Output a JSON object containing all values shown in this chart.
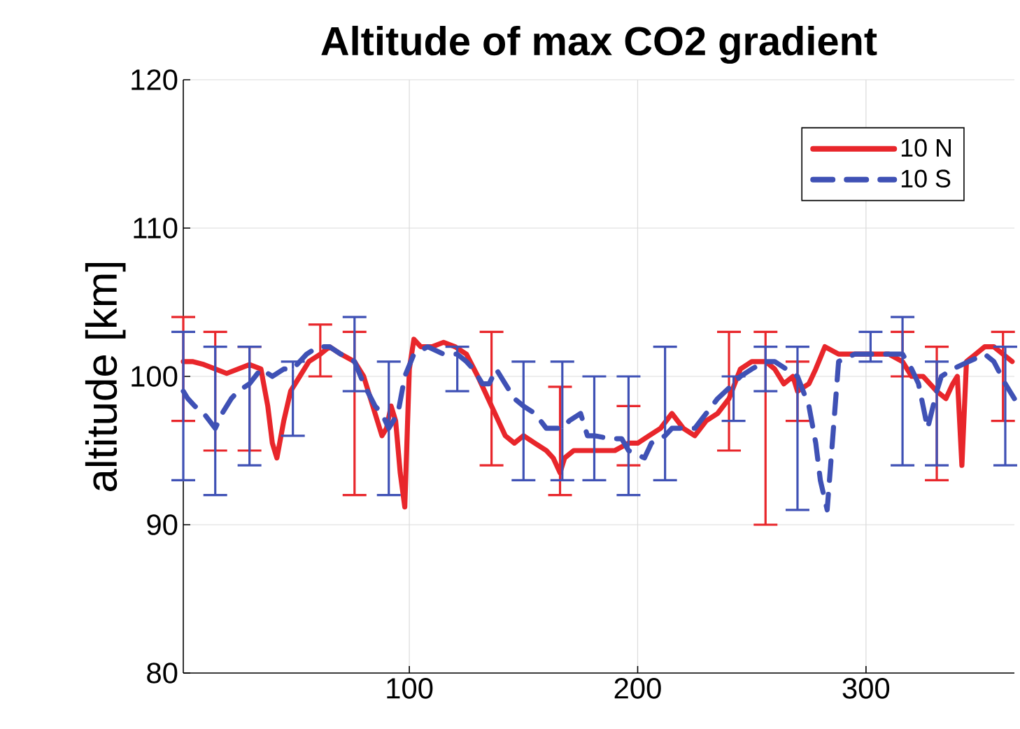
{
  "chart_data": {
    "type": "line",
    "title": "Altitude of max CO2 gradient",
    "ylabel": "altitude [km]",
    "xlim": [
      1,
      365
    ],
    "ylim": [
      80,
      120
    ],
    "xticks": [
      100,
      200,
      300
    ],
    "yticks": [
      80,
      90,
      100,
      110,
      120
    ],
    "grid": true,
    "legend": "top right",
    "series": [
      {
        "name": "10 N",
        "color": "#e8262b",
        "line_style": "solid",
        "x": [
          1,
          5,
          10,
          15,
          20,
          25,
          30,
          35,
          38,
          40,
          42,
          45,
          48,
          52,
          56,
          61,
          65,
          70,
          76,
          80,
          85,
          88,
          90,
          92,
          94,
          96,
          98,
          100,
          102,
          105,
          110,
          115,
          120,
          125,
          130,
          136,
          142,
          146,
          150,
          155,
          160,
          163,
          166,
          168,
          172,
          178,
          185,
          190,
          196,
          200,
          205,
          210,
          215,
          220,
          225,
          230,
          235,
          240,
          245,
          250,
          256,
          260,
          264,
          268,
          270,
          275,
          278,
          282,
          288,
          295,
          300,
          305,
          310,
          316,
          320,
          325,
          331,
          335,
          338,
          340,
          342,
          344,
          348,
          352,
          356,
          360,
          364
        ],
        "values": [
          101,
          101,
          100.8,
          100.5,
          100.2,
          100.5,
          100.8,
          100.5,
          98,
          95.5,
          94.5,
          97,
          99,
          100,
          101,
          101.5,
          102,
          101.5,
          101,
          100,
          97.5,
          96,
          96.5,
          98,
          97,
          93.5,
          91.2,
          100.5,
          102.5,
          102,
          102,
          102.3,
          102,
          101.5,
          100,
          98,
          96,
          95.5,
          96,
          95.5,
          95,
          94.5,
          93.5,
          94.5,
          95,
          95,
          95,
          95,
          95.5,
          95.5,
          96,
          96.5,
          97.5,
          96.5,
          96,
          97,
          97.5,
          98.5,
          100.5,
          101,
          101,
          100.5,
          99.5,
          100,
          99,
          99.5,
          100.5,
          102,
          101.5,
          101.5,
          101.5,
          101.5,
          101.5,
          101,
          100,
          100,
          99,
          98.5,
          99.5,
          100,
          94,
          101,
          101.5,
          102,
          102,
          101.5,
          101
        ],
        "errors": [
          [
            97,
            104
          ],
          null,
          null,
          [
            95,
            103
          ],
          null,
          null,
          [
            95,
            102
          ],
          null,
          null,
          null,
          null,
          null,
          null,
          null,
          null,
          [
            100,
            103.5
          ],
          null,
          null,
          [
            92,
            103
          ],
          null,
          null,
          null,
          null,
          null,
          null,
          null,
          null,
          null,
          null,
          null,
          null,
          null,
          null,
          null,
          null,
          [
            94,
            103
          ],
          null,
          null,
          null,
          null,
          null,
          null,
          [
            92,
            99.3
          ],
          null,
          null,
          null,
          null,
          null,
          [
            94,
            98
          ],
          null,
          null,
          null,
          null,
          null,
          null,
          null,
          null,
          [
            95,
            103
          ],
          null,
          null,
          [
            90,
            103
          ],
          null,
          null,
          null,
          [
            97,
            101
          ],
          null,
          null,
          null,
          null,
          null,
          null,
          null,
          null,
          [
            100,
            103
          ],
          null,
          null,
          [
            93,
            102
          ],
          null,
          null,
          null,
          null,
          null,
          null,
          null,
          null,
          [
            97,
            103
          ],
          null
        ]
      },
      {
        "name": "10 S",
        "color": "#3f51b5",
        "line_style": "dashed",
        "x": [
          1,
          3,
          6,
          10,
          15,
          18,
          22,
          25,
          30,
          35,
          40,
          45,
          49,
          55,
          60,
          65,
          70,
          76,
          80,
          85,
          88,
          91,
          95,
          98,
          102,
          108,
          115,
          121,
          125,
          128,
          132,
          135,
          138,
          142,
          146,
          150,
          155,
          160,
          167,
          170,
          175,
          178,
          181,
          188,
          193,
          196,
          203,
          206,
          212,
          215,
          220,
          225,
          230,
          235,
          242,
          245,
          250,
          256,
          260,
          265,
          270,
          275,
          278,
          280,
          283,
          288,
          295,
          302,
          308,
          316,
          320,
          323,
          325,
          327,
          331,
          333,
          338,
          345,
          352,
          356,
          361,
          365
        ],
        "values": [
          99,
          98.5,
          98,
          97.5,
          96.5,
          97.5,
          98.5,
          99,
          99.5,
          100.5,
          100,
          100.5,
          100.5,
          101.5,
          102,
          102,
          101.5,
          101,
          99.5,
          98,
          97.5,
          96.5,
          97.5,
          100,
          101.5,
          102,
          101.5,
          101.5,
          101,
          100.5,
          99.5,
          99.5,
          100.5,
          99.5,
          98.5,
          98,
          97.5,
          96.5,
          96.5,
          97,
          97.5,
          96,
          96,
          95.8,
          95.8,
          95,
          94.5,
          95.5,
          96,
          96.5,
          96.5,
          96.5,
          97.5,
          98.5,
          99.5,
          100,
          100.5,
          101,
          101,
          100.5,
          100,
          98,
          95.5,
          93,
          91,
          101,
          101.5,
          101.5,
          101.5,
          101.5,
          100.5,
          99.5,
          98,
          96.5,
          99,
          100,
          100.5,
          101,
          101.5,
          101,
          99.5,
          98.5
        ],
        "errors": [
          [
            93,
            103
          ],
          null,
          null,
          null,
          [
            92,
            102
          ],
          null,
          null,
          null,
          [
            94,
            102
          ],
          null,
          null,
          null,
          [
            96,
            101
          ],
          null,
          null,
          null,
          null,
          [
            99,
            104
          ],
          null,
          null,
          null,
          [
            92,
            101
          ],
          null,
          null,
          null,
          null,
          null,
          [
            99,
            102
          ],
          null,
          null,
          null,
          null,
          null,
          null,
          null,
          [
            93,
            101
          ],
          null,
          null,
          [
            93,
            101
          ],
          null,
          null,
          null,
          [
            93,
            100
          ],
          null,
          null,
          [
            92,
            100
          ],
          null,
          null,
          [
            93,
            102
          ],
          null,
          null,
          null,
          null,
          null,
          [
            97,
            100
          ],
          null,
          null,
          [
            99,
            102
          ],
          null,
          null,
          [
            91,
            102
          ],
          null,
          null,
          null,
          null,
          null,
          null,
          [
            101,
            103
          ],
          null,
          [
            94,
            104
          ],
          null,
          null,
          null,
          null,
          [
            94,
            101
          ],
          null,
          null,
          null,
          null,
          null,
          [
            94,
            102
          ],
          null
        ]
      }
    ]
  }
}
